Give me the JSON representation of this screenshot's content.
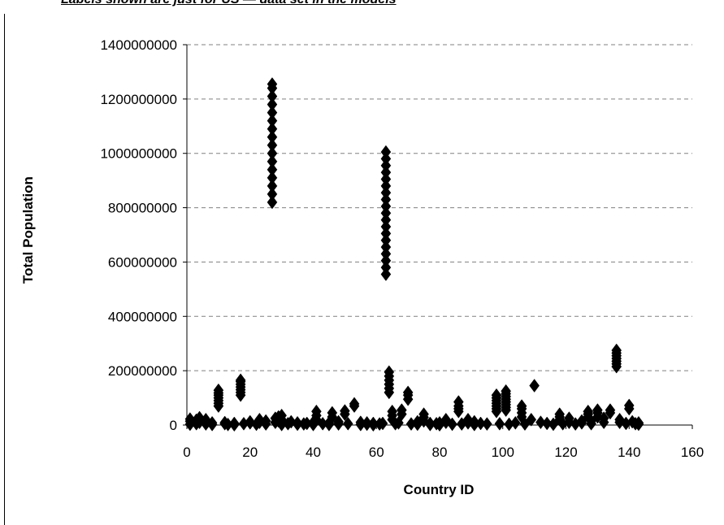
{
  "header": {
    "caption": "Labels shown are just for US — data set in the models"
  },
  "chart_data": {
    "type": "scatter",
    "title": "",
    "xlabel": "Country ID",
    "ylabel": "Total Population",
    "xlim": [
      0,
      160
    ],
    "ylim": [
      0,
      1400000000
    ],
    "x_ticks": [
      0,
      20,
      40,
      60,
      80,
      100,
      120,
      140,
      160
    ],
    "y_ticks": [
      0,
      200000000,
      400000000,
      600000000,
      800000000,
      1000000000,
      1200000000,
      1400000000
    ],
    "x_tick_labels": [
      "0",
      "20",
      "40",
      "60",
      "80",
      "100",
      "120",
      "140",
      "160"
    ],
    "y_tick_labels": [
      "0",
      "200000000",
      "400000000",
      "600000000",
      "800000000",
      "1000000000",
      "1200000000",
      "1400000000"
    ],
    "grid": "horizontal-dashed",
    "legend": "none",
    "marker": "diamond",
    "marker_color": "#000000",
    "series": [
      {
        "points": [
          [
            1,
            3000000
          ],
          [
            1,
            14000000
          ],
          [
            1,
            22000000
          ],
          [
            3,
            5000000
          ],
          [
            3,
            18000000
          ],
          [
            4,
            10000000
          ],
          [
            4,
            27000000
          ],
          [
            6,
            4000000
          ],
          [
            6,
            20000000
          ],
          [
            8,
            2000000
          ],
          [
            8,
            8000000
          ],
          [
            10,
            70000000
          ],
          [
            10,
            80000000
          ],
          [
            10,
            90000000
          ],
          [
            10,
            100000000
          ],
          [
            10,
            110000000
          ],
          [
            10,
            118000000
          ],
          [
            10,
            128000000
          ],
          [
            12,
            5000000
          ],
          [
            12,
            9000000
          ],
          [
            13,
            2000000
          ],
          [
            15,
            1000000
          ],
          [
            15,
            6000000
          ],
          [
            17,
            110000000
          ],
          [
            17,
            120000000
          ],
          [
            17,
            130000000
          ],
          [
            17,
            140000000
          ],
          [
            17,
            150000000
          ],
          [
            17,
            160000000
          ],
          [
            17,
            165000000
          ],
          [
            18,
            5000000
          ],
          [
            20,
            8000000
          ],
          [
            20,
            12000000
          ],
          [
            22,
            3000000
          ],
          [
            23,
            10000000
          ],
          [
            23,
            20000000
          ],
          [
            25,
            4000000
          ],
          [
            25,
            15000000
          ],
          [
            27,
            820000000
          ],
          [
            27,
            850000000
          ],
          [
            27,
            880000000
          ],
          [
            27,
            910000000
          ],
          [
            27,
            940000000
          ],
          [
            27,
            970000000
          ],
          [
            27,
            1000000000
          ],
          [
            27,
            1030000000
          ],
          [
            27,
            1060000000
          ],
          [
            27,
            1090000000
          ],
          [
            27,
            1120000000
          ],
          [
            27,
            1150000000
          ],
          [
            27,
            1180000000
          ],
          [
            27,
            1210000000
          ],
          [
            27,
            1240000000
          ],
          [
            27,
            1255000000
          ],
          [
            28,
            10000000
          ],
          [
            28,
            25000000
          ],
          [
            29,
            15000000
          ],
          [
            29,
            30000000
          ],
          [
            30,
            2000000
          ],
          [
            30,
            20000000
          ],
          [
            30,
            35000000
          ],
          [
            32,
            5000000
          ],
          [
            33,
            12000000
          ],
          [
            35,
            3000000
          ],
          [
            35,
            8000000
          ],
          [
            37,
            4000000
          ],
          [
            38,
            6000000
          ],
          [
            40,
            2000000
          ],
          [
            40,
            10000000
          ],
          [
            41,
            20000000
          ],
          [
            41,
            35000000
          ],
          [
            41,
            50000000
          ],
          [
            43,
            5000000
          ],
          [
            45,
            2000000
          ],
          [
            45,
            8000000
          ],
          [
            46,
            30000000
          ],
          [
            46,
            45000000
          ],
          [
            48,
            4000000
          ],
          [
            48,
            12000000
          ],
          [
            50,
            40000000
          ],
          [
            50,
            52000000
          ],
          [
            51,
            5000000
          ],
          [
            53,
            70000000
          ],
          [
            53,
            78000000
          ],
          [
            55,
            2000000
          ],
          [
            55,
            10000000
          ],
          [
            57,
            3000000
          ],
          [
            57,
            8000000
          ],
          [
            59,
            1000000
          ],
          [
            59,
            6000000
          ],
          [
            61,
            4000000
          ],
          [
            62,
            6000000
          ],
          [
            63,
            555000000
          ],
          [
            63,
            580000000
          ],
          [
            63,
            605000000
          ],
          [
            63,
            630000000
          ],
          [
            63,
            655000000
          ],
          [
            63,
            680000000
          ],
          [
            63,
            705000000
          ],
          [
            63,
            730000000
          ],
          [
            63,
            755000000
          ],
          [
            63,
            780000000
          ],
          [
            63,
            805000000
          ],
          [
            63,
            830000000
          ],
          [
            63,
            855000000
          ],
          [
            63,
            880000000
          ],
          [
            63,
            905000000
          ],
          [
            63,
            930000000
          ],
          [
            63,
            955000000
          ],
          [
            63,
            980000000
          ],
          [
            63,
            1005000000
          ],
          [
            64,
            120000000
          ],
          [
            64,
            135000000
          ],
          [
            64,
            150000000
          ],
          [
            64,
            165000000
          ],
          [
            64,
            180000000
          ],
          [
            64,
            195000000
          ],
          [
            65,
            20000000
          ],
          [
            65,
            35000000
          ],
          [
            65,
            50000000
          ],
          [
            66,
            5000000
          ],
          [
            67,
            8000000
          ],
          [
            68,
            40000000
          ],
          [
            68,
            55000000
          ],
          [
            70,
            95000000
          ],
          [
            70,
            110000000
          ],
          [
            70,
            120000000
          ],
          [
            71,
            4000000
          ],
          [
            73,
            3000000
          ],
          [
            73,
            12000000
          ],
          [
            75,
            15000000
          ],
          [
            75,
            28000000
          ],
          [
            75,
            40000000
          ],
          [
            77,
            2000000
          ],
          [
            77,
            6000000
          ],
          [
            79,
            5000000
          ],
          [
            80,
            1000000
          ],
          [
            80,
            8000000
          ],
          [
            82,
            10000000
          ],
          [
            82,
            20000000
          ],
          [
            84,
            3000000
          ],
          [
            86,
            50000000
          ],
          [
            86,
            60000000
          ],
          [
            86,
            70000000
          ],
          [
            86,
            85000000
          ],
          [
            87,
            4000000
          ],
          [
            89,
            8000000
          ],
          [
            89,
            20000000
          ],
          [
            91,
            2000000
          ],
          [
            91,
            12000000
          ],
          [
            93,
            6000000
          ],
          [
            95,
            4000000
          ],
          [
            98,
            50000000
          ],
          [
            98,
            60000000
          ],
          [
            98,
            70000000
          ],
          [
            98,
            80000000
          ],
          [
            98,
            90000000
          ],
          [
            98,
            100000000
          ],
          [
            98,
            110000000
          ],
          [
            99,
            5000000
          ],
          [
            101,
            55000000
          ],
          [
            101,
            65000000
          ],
          [
            101,
            75000000
          ],
          [
            101,
            85000000
          ],
          [
            101,
            95000000
          ],
          [
            101,
            105000000
          ],
          [
            101,
            115000000
          ],
          [
            101,
            125000000
          ],
          [
            102,
            3000000
          ],
          [
            104,
            8000000
          ],
          [
            106,
            30000000
          ],
          [
            106,
            45000000
          ],
          [
            106,
            60000000
          ],
          [
            106,
            70000000
          ],
          [
            107,
            4000000
          ],
          [
            109,
            20000000
          ],
          [
            110,
            145000000
          ],
          [
            112,
            10000000
          ],
          [
            114,
            6000000
          ],
          [
            116,
            3000000
          ],
          [
            118,
            20000000
          ],
          [
            118,
            30000000
          ],
          [
            118,
            40000000
          ],
          [
            119,
            5000000
          ],
          [
            121,
            10000000
          ],
          [
            121,
            25000000
          ],
          [
            123,
            4000000
          ],
          [
            125,
            8000000
          ],
          [
            125,
            15000000
          ],
          [
            127,
            30000000
          ],
          [
            127,
            40000000
          ],
          [
            127,
            50000000
          ],
          [
            128,
            5000000
          ],
          [
            128,
            15000000
          ],
          [
            130,
            30000000
          ],
          [
            130,
            45000000
          ],
          [
            130,
            55000000
          ],
          [
            132,
            10000000
          ],
          [
            132,
            25000000
          ],
          [
            134,
            45000000
          ],
          [
            134,
            55000000
          ],
          [
            136,
            215000000
          ],
          [
            136,
            225000000
          ],
          [
            136,
            235000000
          ],
          [
            136,
            245000000
          ],
          [
            136,
            255000000
          ],
          [
            136,
            265000000
          ],
          [
            136,
            275000000
          ],
          [
            137,
            10000000
          ],
          [
            137,
            20000000
          ],
          [
            139,
            6000000
          ],
          [
            140,
            60000000
          ],
          [
            140,
            72000000
          ],
          [
            141,
            12000000
          ],
          [
            142,
            5000000
          ],
          [
            143,
            3000000
          ],
          [
            143,
            8000000
          ]
        ]
      }
    ]
  }
}
